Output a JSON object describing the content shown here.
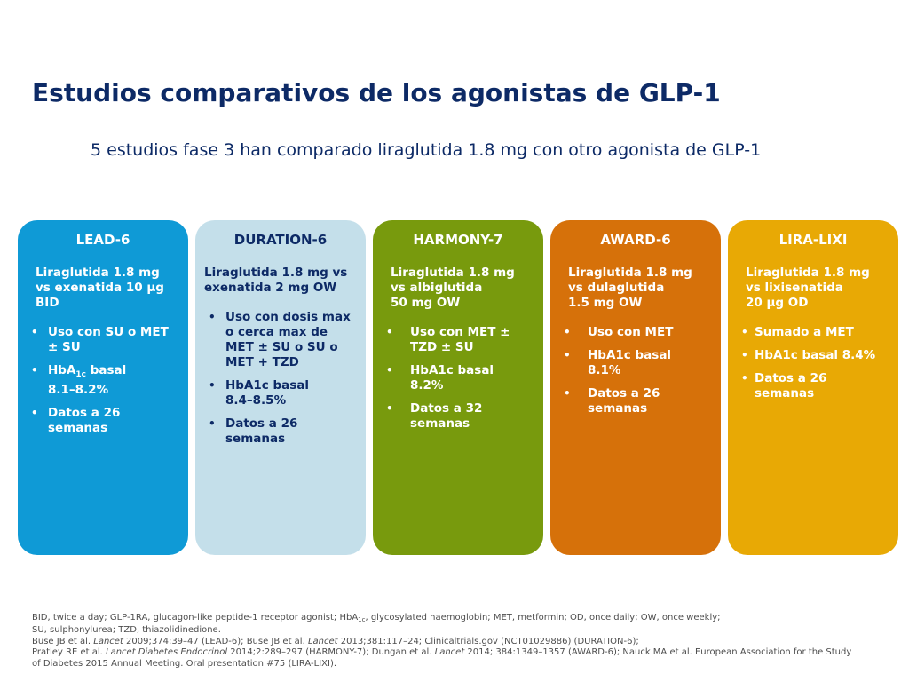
{
  "title": "Estudios comparativos de los agonistas de GLP-1",
  "subtitle": "5 estudios fase 3 han comparado liraglutida 1.8 mg con otro agonista de GLP-1",
  "colors": {
    "title": "#0d2a66",
    "lead6": "#0f9ad6",
    "duration6": "#c4dfea",
    "harmony7": "#789a0d",
    "award6": "#d6710a",
    "liralixi": "#e8a905"
  },
  "studies": [
    {
      "name": "LEAD-6",
      "intro": [
        "Liraglutida 1.8 mg",
        "vs exenatida 10 µg",
        "BID"
      ],
      "bullets": [
        [
          "Uso con SU o MET",
          "± SU"
        ],
        [
          "HbA1c basal",
          "8.1–8.2%"
        ],
        [
          "Datos a 26",
          "semanas"
        ]
      ]
    },
    {
      "name": "DURATION-6",
      "intro": [
        "Liraglutida 1.8 mg vs",
        "exenatida 2 mg OW"
      ],
      "bullets": [
        [
          "Uso con dosis max",
          "o cerca max de",
          "MET ± SU o SU o",
          "MET + TZD"
        ],
        [
          "HbA1c basal",
          "8.4–8.5%"
        ],
        [
          "Datos a 26",
          "semanas"
        ]
      ]
    },
    {
      "name": "HARMONY-7",
      "intro": [
        "Liraglutida 1.8 mg",
        "vs albiglutida",
        "50 mg OW"
      ],
      "bullets": [
        [
          "Uso con MET ±",
          "TZD ± SU"
        ],
        [
          "HbA1c basal",
          "8.2%"
        ],
        [
          "Datos a 32",
          "semanas"
        ]
      ]
    },
    {
      "name": "AWARD-6",
      "intro": [
        "Liraglutida 1.8 mg",
        "vs dulaglutida",
        "1.5 mg OW"
      ],
      "bullets": [
        [
          "Uso con MET"
        ],
        [
          "HbA1c basal",
          "8.1%"
        ],
        [
          "Datos a 26",
          "semanas"
        ]
      ]
    },
    {
      "name": "LIRA-LIXI",
      "intro": [
        "Liraglutida 1.8 mg",
        "vs lixisenatida",
        "20 µg OD"
      ],
      "bullets": [
        [
          "Sumado a MET"
        ],
        [
          "HbA1c basal 8.4%"
        ],
        [
          "Datos a 26",
          "semanas"
        ]
      ]
    }
  ],
  "footnotes": {
    "abbr_1a": "BID, twice a day; GLP-1RA, glucagon-like peptide-1 receptor agonist; HbA",
    "abbr_1sub": "1c",
    "abbr_1b": ", glycosylated haemoglobin; MET, metformin; OD, once daily; OW, once weekly;",
    "abbr_2": "SU, sulphonylurea; TZD, thiazolidinedione.",
    "ref_1a": "Buse JB et al. ",
    "ref_1_journal1": "Lancet",
    "ref_1b": " 2009;374:39–47 (LEAD-6); Buse JB et al. ",
    "ref_1_journal2": "Lancet",
    "ref_1c": " 2013;381:117–24; Clinicaltrials.gov (NCT01029886) (DURATION-6);",
    "ref_2a": "Pratley RE et al. ",
    "ref_2_journal1": "Lancet Diabetes Endocrinol",
    "ref_2b": " 2014;2:289–297 (HARMONY-7); Dungan et al. ",
    "ref_2_journal2": "Lancet",
    "ref_2c": " 2014; 384:1349–1357 (AWARD-6); Nauck MA et al. European Association for the Study",
    "ref_3": "of Diabetes 2015 Annual Meeting. Oral presentation #75 (LIRA-LIXI)."
  }
}
